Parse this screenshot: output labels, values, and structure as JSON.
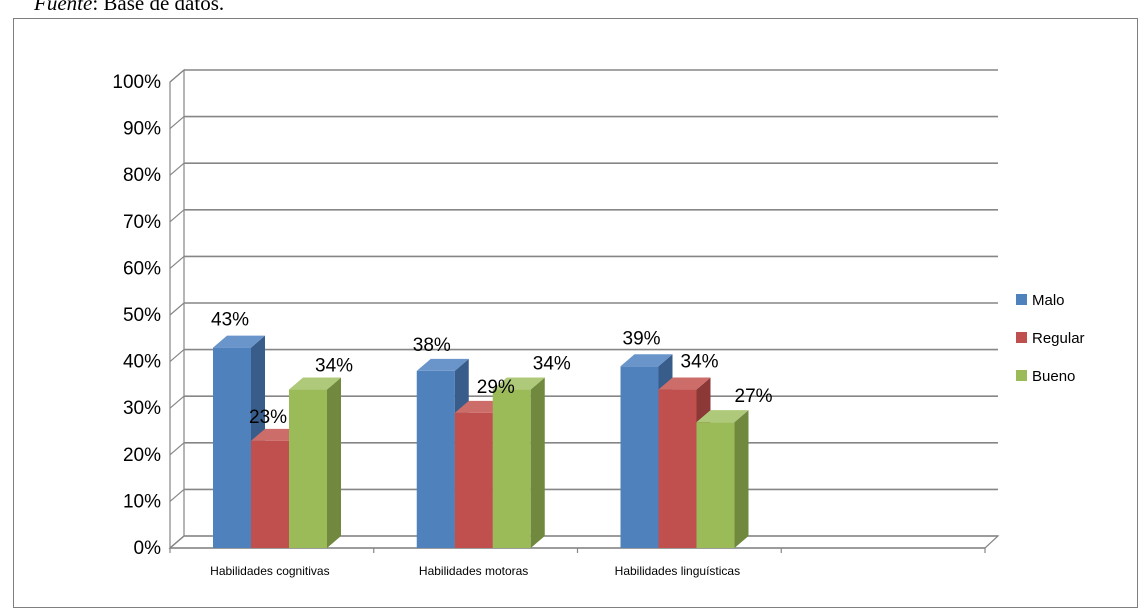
{
  "source_caption": {
    "prefix": "Fuente",
    "rest": ": Base de datos."
  },
  "chart_data": {
    "type": "bar",
    "title": "",
    "xlabel": "",
    "ylabel": "",
    "categories": [
      "Habilidades cognitivas",
      "Habilidades motoras",
      "Habilidades linguísticas"
    ],
    "series": [
      {
        "name": "Malo",
        "values": [
          43,
          38,
          39
        ],
        "labels": [
          "43%",
          "38%",
          "39%"
        ]
      },
      {
        "name": "Regular",
        "values": [
          23,
          29,
          34
        ],
        "labels": [
          "23%",
          "29%",
          "34%"
        ]
      },
      {
        "name": "Bueno",
        "values": [
          34,
          34,
          27
        ],
        "labels": [
          "34%",
          "34%",
          "27%"
        ]
      }
    ],
    "ylim": [
      0,
      100
    ],
    "y_ticks": [
      "0%",
      "10%",
      "20%",
      "30%",
      "40%",
      "50%",
      "60%",
      "70%",
      "80%",
      "90%",
      "100%"
    ],
    "grid": true,
    "style": "3d-clustered-column",
    "legend_position": "right",
    "colors": {
      "Malo": {
        "front": "#4f81bd",
        "side": "#385d8a",
        "top": "#6a95cb"
      },
      "Regular": {
        "front": "#c0504d",
        "side": "#8c3836",
        "top": "#cc6d6a"
      },
      "Bueno": {
        "front": "#9bbb59",
        "side": "#71893f",
        "top": "#afc97a"
      }
    },
    "gridline_color": "#868686"
  }
}
